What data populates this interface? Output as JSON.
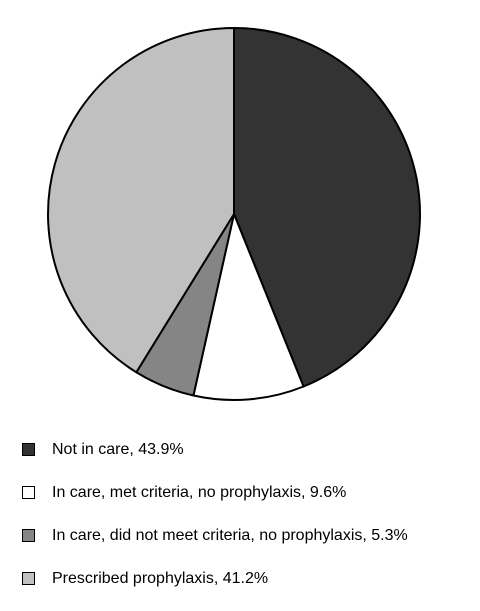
{
  "chart_data": {
    "type": "pie",
    "title": "",
    "slices": [
      {
        "label": "Not in care, 43.9%",
        "value": 43.9,
        "color": "#333333"
      },
      {
        "label": "In care, met criteria, no prophylaxis, 9.6%",
        "value": 9.6,
        "color": "#ffffff"
      },
      {
        "label": "In care, did not meet criteria, no prophylaxis, 5.3%",
        "value": 5.3,
        "color": "#858585"
      },
      {
        "label": "Prescribed prophylaxis, 41.2%",
        "value": 41.2,
        "color": "#c0c0c0"
      }
    ],
    "start_angle": "12 o'clock",
    "direction": "clockwise",
    "legend_position": "bottom"
  }
}
